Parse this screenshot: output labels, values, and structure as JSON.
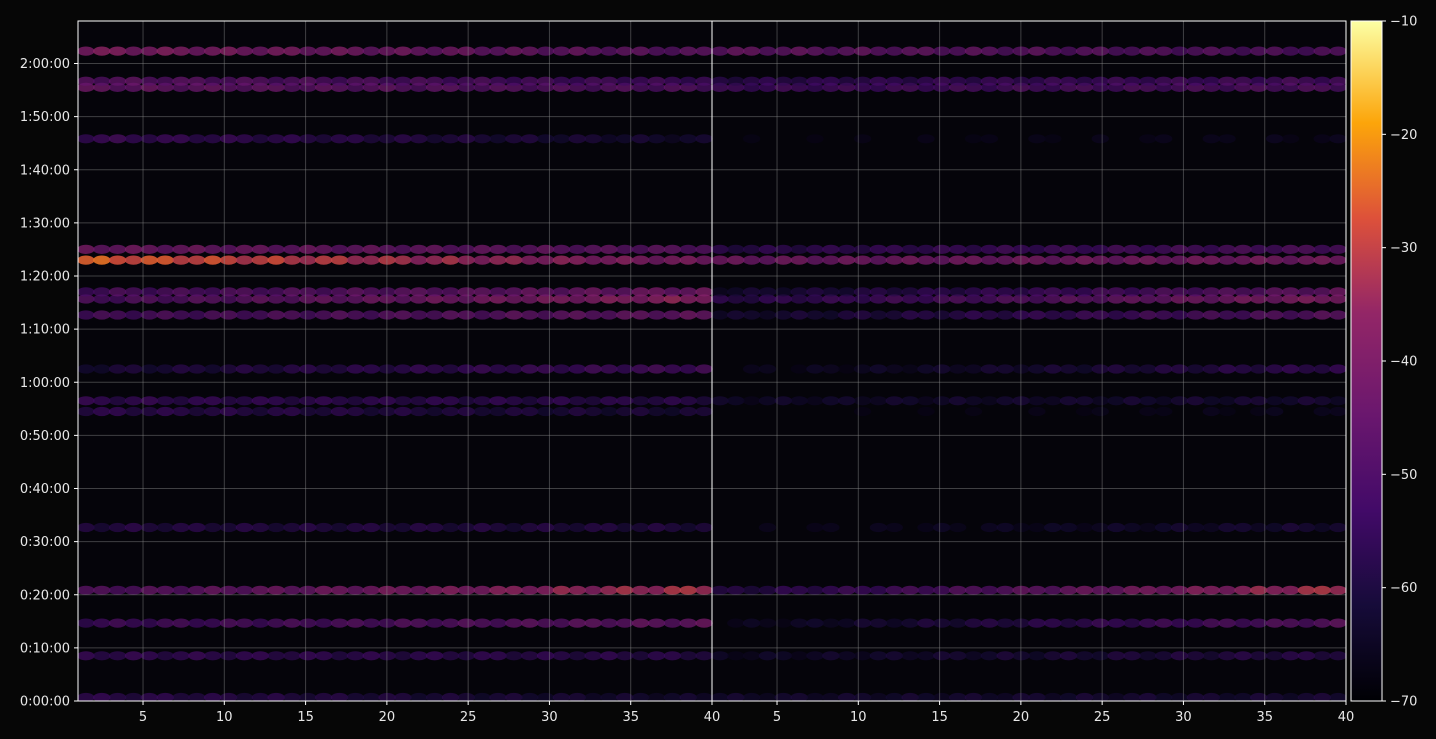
{
  "chart_data": {
    "type": "heatmap",
    "title": "",
    "xlabel": "",
    "ylabel": "",
    "colormap": "inferno",
    "background": "#060606",
    "grid": true,
    "panels": [
      {
        "name": "",
        "x_range": [
          1,
          40
        ],
        "x_ticks": [
          "5",
          "10",
          "15",
          "20",
          "25",
          "30",
          "35",
          "40"
        ]
      },
      {
        "name": "",
        "x_range": [
          1,
          40
        ],
        "x_ticks": [
          "5",
          "10",
          "15",
          "20",
          "25",
          "30",
          "35",
          "40"
        ]
      }
    ],
    "y_range_seconds": [
      0,
      7680
    ],
    "y_ticks": [
      "0:00:00",
      "0:10:00",
      "0:20:00",
      "0:30:00",
      "0:40:00",
      "0:50:00",
      "1:00:00",
      "1:10:00",
      "1:20:00",
      "1:30:00",
      "1:40:00",
      "1:50:00",
      "2:00:00"
    ],
    "colorbar": {
      "min": -70,
      "max": -10,
      "ticks": [
        "−70",
        "−60",
        "−50",
        "−40",
        "−30",
        "−20",
        "−10"
      ]
    },
    "bands": [
      {
        "time": "0:00:40",
        "left": [
          -55,
          -62
        ],
        "right": [
          -62,
          -60
        ]
      },
      {
        "time": "0:08:30",
        "left": [
          -54,
          -56
        ],
        "right": [
          -64,
          -56
        ]
      },
      {
        "time": "0:14:40",
        "left": [
          -52,
          -44
        ],
        "right": [
          -66,
          -46
        ]
      },
      {
        "time": "0:20:50",
        "left": [
          -48,
          -32
        ],
        "right": [
          -58,
          -32
        ]
      },
      {
        "time": "0:32:40",
        "left": [
          -57,
          -58
        ],
        "right": [
          -68,
          -60
        ]
      },
      {
        "time": "0:54:30",
        "left": [
          -55,
          -60
        ],
        "right": [
          -70,
          -66
        ]
      },
      {
        "time": "0:56:30",
        "left": [
          -54,
          -56
        ],
        "right": [
          -63,
          -60
        ]
      },
      {
        "time": "1:02:30",
        "left": [
          -60,
          -50
        ],
        "right": [
          -67,
          -54
        ]
      },
      {
        "time": "1:12:40",
        "left": [
          -50,
          -44
        ],
        "right": [
          -62,
          -46
        ]
      },
      {
        "time": "1:15:40",
        "left": [
          -49,
          -36
        ],
        "right": [
          -56,
          -38
        ]
      },
      {
        "time": "1:17:00",
        "left": [
          -50,
          -42
        ],
        "right": [
          -62,
          -44
        ]
      },
      {
        "time": "1:23:00",
        "left": [
          -26,
          -40
        ],
        "right": [
          -42,
          -40
        ]
      },
      {
        "time": "1:25:00",
        "left": [
          -42,
          -46
        ],
        "right": [
          -56,
          -48
        ]
      },
      {
        "time": "1:45:50",
        "left": [
          -52,
          -62
        ],
        "right": [
          -69,
          -66
        ]
      },
      {
        "time": "1:55:30",
        "left": [
          -44,
          -48
        ],
        "right": [
          -52,
          -48
        ]
      },
      {
        "time": "1:56:40",
        "left": [
          -46,
          -52
        ],
        "right": [
          -56,
          -50
        ]
      },
      {
        "time": "2:02:20",
        "left": [
          -38,
          -46
        ],
        "right": [
          -44,
          -48
        ]
      }
    ]
  }
}
